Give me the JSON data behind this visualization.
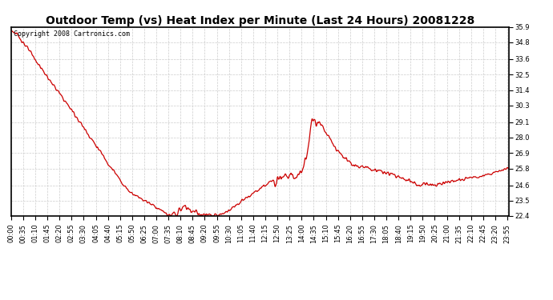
{
  "title": "Outdoor Temp (vs) Heat Index per Minute (Last 24 Hours) 20081228",
  "copyright": "Copyright 2008 Cartronics.com",
  "line_color": "#cc0000",
  "background_color": "#ffffff",
  "grid_color": "#cccccc",
  "ylim": [
    22.4,
    35.9
  ],
  "yticks": [
    22.4,
    23.5,
    24.6,
    25.8,
    26.9,
    28.0,
    29.1,
    30.3,
    31.4,
    32.5,
    33.6,
    34.8,
    35.9
  ],
  "xtick_labels": [
    "00:00",
    "00:35",
    "01:10",
    "01:45",
    "02:20",
    "02:55",
    "03:30",
    "04:05",
    "04:40",
    "05:15",
    "05:50",
    "06:25",
    "07:00",
    "07:35",
    "08:10",
    "08:45",
    "09:20",
    "09:55",
    "10:30",
    "11:05",
    "11:40",
    "12:15",
    "12:50",
    "13:25",
    "14:00",
    "14:35",
    "15:10",
    "15:45",
    "16:20",
    "16:55",
    "17:30",
    "18:05",
    "18:40",
    "19:15",
    "19:50",
    "20:25",
    "21:00",
    "21:35",
    "22:10",
    "22:45",
    "23:20",
    "23:55"
  ],
  "title_fontsize": 10,
  "copyright_fontsize": 6,
  "tick_fontsize": 6,
  "linewidth": 0.9
}
